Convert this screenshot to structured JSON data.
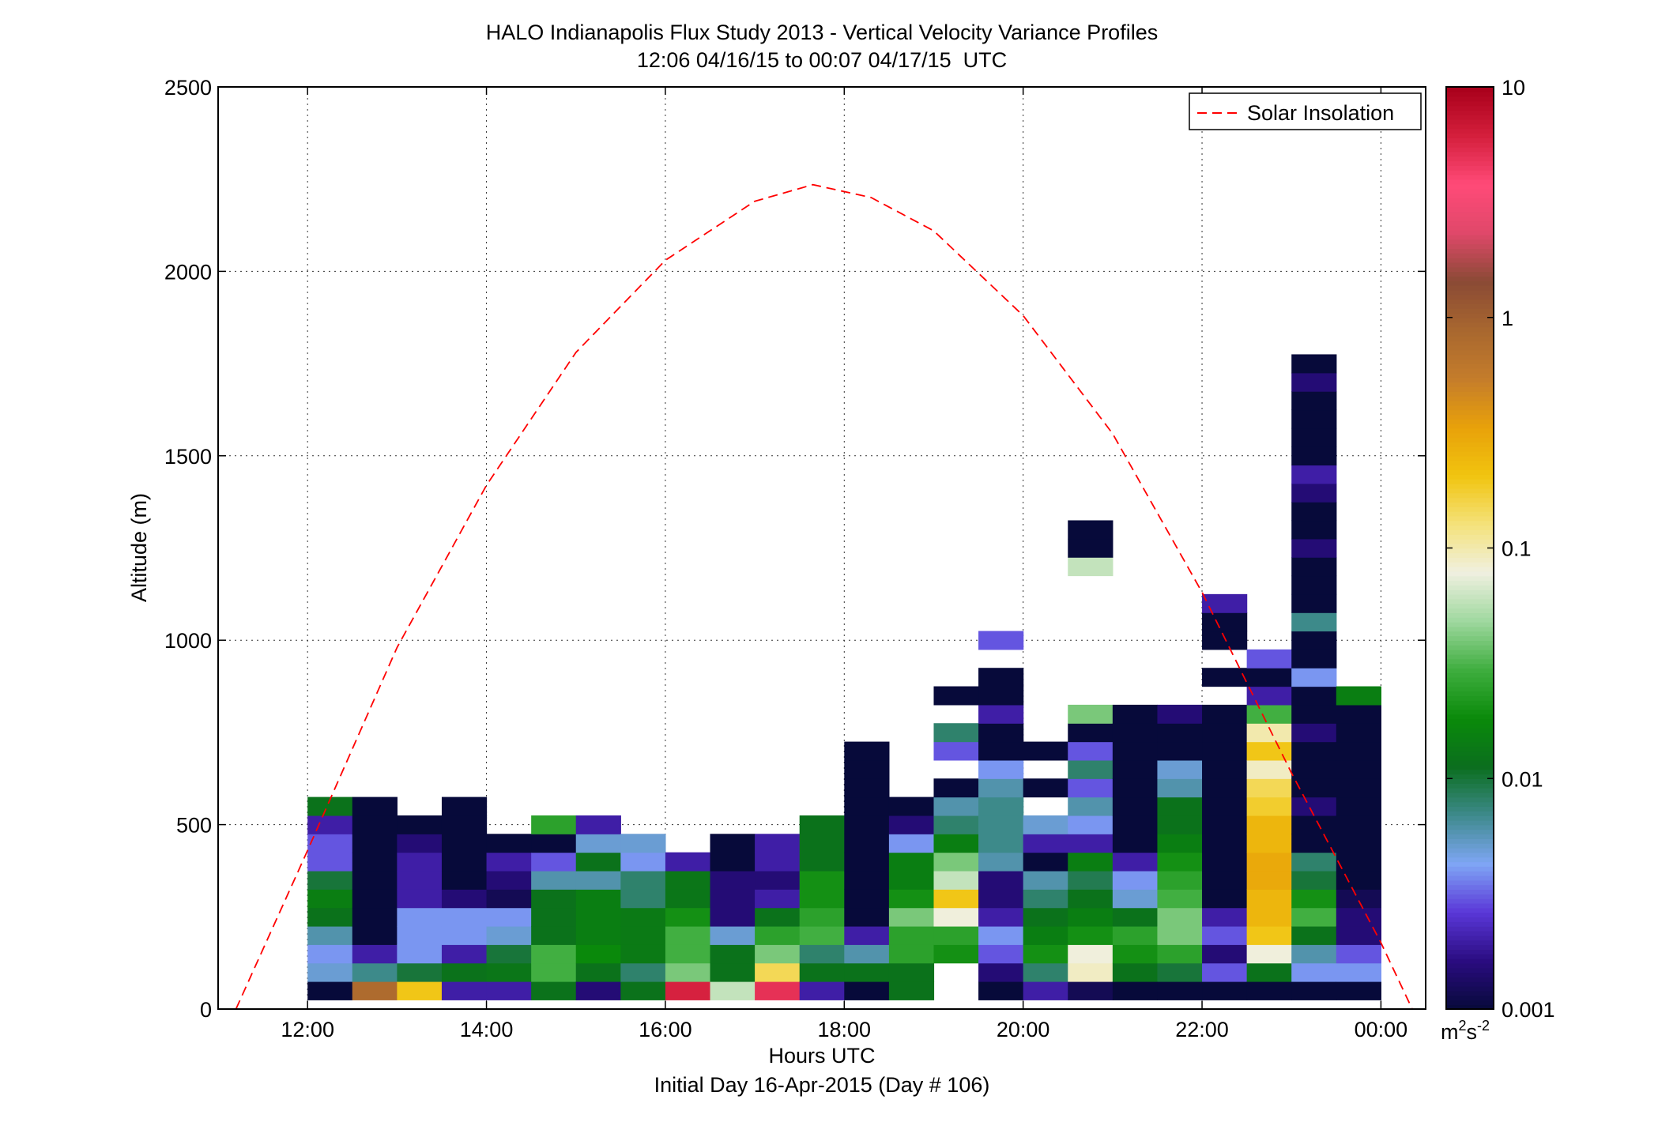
{
  "chart_data": {
    "type": "heatmap",
    "title": "HALO Indianapolis Flux Study 2013 - Vertical Velocity Variance Profiles",
    "subtitle": "12:06 04/16/15 to 00:07 04/17/15  UTC",
    "xlabel": "Hours UTC",
    "xlabel2": "Initial Day 16-Apr-2015 (Day # 106)",
    "ylabel": "Altitude (m)",
    "xlim_hours": [
      11.0,
      24.5
    ],
    "ylim": [
      0,
      2500
    ],
    "x_ticks": [
      12,
      14,
      16,
      18,
      20,
      22,
      24
    ],
    "x_tick_labels": [
      "12:00",
      "14:00",
      "16:00",
      "18:00",
      "20:00",
      "22:00",
      "00:00"
    ],
    "y_ticks": [
      0,
      500,
      1000,
      1500,
      2000,
      2500
    ],
    "y_tick_labels": [
      "0",
      "500",
      "1000",
      "1500",
      "2000",
      "2500"
    ],
    "grid": true,
    "legend": {
      "position": "top-right",
      "entries": [
        "Solar Insolation"
      ]
    },
    "colorbar": {
      "scale": "log",
      "range": [
        0.001,
        10
      ],
      "ticks": [
        0.001,
        0.01,
        0.1,
        1,
        10
      ],
      "tick_labels": [
        "0.001",
        "0.01",
        "0.1",
        "1",
        "10"
      ],
      "units": "m",
      "units_sup": "2",
      "units_s": "s",
      "units_sup2": "-2",
      "colors": [
        "#070a3a",
        "#2a0c80",
        "#5a37d8",
        "#7fa6f5",
        "#3e8a8c",
        "#0b6e1e",
        "#0a8a0a",
        "#3fae3f",
        "#9fd89f",
        "#f0f0e0",
        "#f4e27a",
        "#f1c40f",
        "#e8a10a",
        "#c47c2b",
        "#a8672f",
        "#8a4a35",
        "#e0486a",
        "#ff4a78",
        "#d41f3c",
        "#a8001a"
      ]
    },
    "bin_width_hours": 0.5,
    "bin_height_m": 50,
    "columns": [
      {
        "t": 12.25,
        "base": 50,
        "cells": [
          0.001,
          0.005,
          0.004,
          0.006,
          0.012,
          0.015,
          0.01,
          0.003,
          0.003,
          0.002,
          0.012
        ]
      },
      {
        "t": 12.75,
        "base": 50,
        "cells": [
          0.8,
          0.007,
          0.002,
          0.001,
          0.001,
          0.001,
          0.001,
          0.001,
          0.001,
          0.001,
          0.001
        ]
      },
      {
        "t": 13.25,
        "base": 50,
        "cells": [
          0.2,
          0.01,
          0.004,
          0.004,
          0.004,
          0.002,
          0.002,
          0.002,
          0.0015,
          0.001
        ]
      },
      {
        "t": 13.75,
        "base": 50,
        "cells": [
          0.002,
          0.012,
          0.002,
          0.004,
          0.004,
          0.0015,
          0.001,
          0.001,
          0.001,
          0.001,
          0.001
        ]
      },
      {
        "t": 14.25,
        "base": 50,
        "cells": [
          0.002,
          0.013,
          0.01,
          0.005,
          0.004,
          0.0012,
          0.0015,
          0.002,
          0.001
        ]
      },
      {
        "t": 14.75,
        "base": 50,
        "cells": [
          0.012,
          0.03,
          0.03,
          0.012,
          0.012,
          0.012,
          0.006,
          0.003,
          0.001,
          0.025
        ]
      },
      {
        "t": 15.25,
        "base": 50,
        "cells": [
          0.0015,
          0.012,
          0.018,
          0.015,
          0.015,
          0.015,
          0.006,
          0.012,
          0.005,
          0.002
        ]
      },
      {
        "t": 15.75,
        "base": 50,
        "cells": [
          0.012,
          0.008,
          0.014,
          0.014,
          0.014,
          0.008,
          0.008,
          0.004,
          0.005
        ]
      },
      {
        "t": 16.25,
        "base": 50,
        "cells": [
          6.0,
          0.04,
          0.03,
          0.03,
          0.02,
          0.013,
          0.013,
          0.002
        ]
      },
      {
        "t": 16.75,
        "base": 50,
        "cells": [
          0.06,
          0.012,
          0.012,
          0.005,
          0.0015,
          0.0015,
          0.0015,
          0.001,
          0.001
        ]
      },
      {
        "t": 17.25,
        "base": 50,
        "cells": [
          5.0,
          0.15,
          0.04,
          0.025,
          0.012,
          0.002,
          0.0015,
          0.002,
          0.002
        ]
      },
      {
        "t": 17.75,
        "base": 50,
        "cells": [
          0.002,
          0.012,
          0.008,
          0.03,
          0.025,
          0.02,
          0.02,
          0.012,
          0.012,
          0.012
        ]
      },
      {
        "t": 18.25,
        "base": 50,
        "cells": [
          0.001,
          0.012,
          0.006,
          0.002,
          0.001,
          0.001,
          0.001,
          0.001,
          0.001,
          0.001,
          0.001,
          0.001,
          0.001,
          0.001
        ]
      },
      {
        "t": 18.75,
        "base": 50,
        "cells": [
          0.012,
          0.012,
          0.025,
          0.025,
          0.04,
          0.02,
          0.015,
          0.015,
          0.004,
          0.0015,
          0.001
        ]
      },
      {
        "t": 19.25,
        "base": 150,
        "cells": [
          0.02,
          0.025,
          0.08,
          0.2,
          0.06,
          0.04,
          0.015,
          0.008,
          0.006,
          0.001,
          null,
          0.003,
          0.008,
          null,
          0.001
        ]
      },
      {
        "t": 19.75,
        "base": 50,
        "cells": [
          0.001,
          0.0015,
          0.003,
          0.004,
          0.002,
          0.0015,
          0.0015,
          0.006,
          0.007,
          0.007,
          0.007,
          0.006,
          0.004,
          0.001,
          0.001,
          0.002,
          0.001,
          0.001,
          null,
          0.003
        ]
      },
      {
        "t": 20.25,
        "base": 50,
        "cells": [
          0.002,
          0.008,
          0.02,
          0.015,
          0.012,
          0.008,
          0.006,
          0.001,
          0.002,
          0.005,
          null,
          0.001,
          null,
          0.001
        ]
      },
      {
        "t": 20.75,
        "base": 50,
        "cells": [
          0.0012,
          0.09,
          0.08,
          0.02,
          0.015,
          0.012,
          0.009,
          0.015,
          0.002,
          0.004,
          0.006,
          0.003,
          0.008,
          0.003,
          0.001,
          0.04,
          null,
          null,
          null,
          null,
          null,
          null,
          null,
          0.06,
          0.001,
          0.001
        ]
      },
      {
        "t": 21.25,
        "base": 50,
        "cells": [
          0.001,
          0.012,
          0.02,
          0.025,
          0.012,
          0.005,
          0.004,
          0.002,
          0.001,
          0.001,
          0.001,
          0.001,
          0.001,
          0.001,
          0.001,
          0.001
        ]
      },
      {
        "t": 21.75,
        "base": 50,
        "cells": [
          0.001,
          0.01,
          0.025,
          0.04,
          0.04,
          0.03,
          0.025,
          0.02,
          0.015,
          0.012,
          0.012,
          0.006,
          0.005,
          0.001,
          0.001,
          0.0015
        ]
      },
      {
        "t": 22.25,
        "base": 50,
        "cells": [
          0.001,
          0.003,
          0.0015,
          0.003,
          0.002,
          0.001,
          0.001,
          0.001,
          0.001,
          0.001,
          0.001,
          0.001,
          0.001,
          0.001,
          0.001,
          0.001,
          null,
          0.001,
          null,
          0.001,
          0.001,
          0.002
        ]
      },
      {
        "t": 22.75,
        "base": 50,
        "cells": [
          0.001,
          0.012,
          0.08,
          0.2,
          0.25,
          0.25,
          0.3,
          0.3,
          0.25,
          0.25,
          0.18,
          0.15,
          0.09,
          0.2,
          0.1,
          0.03,
          0.002,
          0.001,
          0.003
        ]
      },
      {
        "t": 23.25,
        "base": 50,
        "cells": [
          0.001,
          0.004,
          0.006,
          0.012,
          0.03,
          0.02,
          0.01,
          0.008,
          0.001,
          0.001,
          0.0015,
          0.001,
          0.001,
          0.001,
          0.0015,
          0.001,
          0.001,
          0.004,
          0.001,
          0.001,
          0.007,
          0.001,
          0.001,
          0.001,
          0.0015,
          0.001,
          0.001,
          0.0015,
          0.002,
          0.001,
          0.001,
          0.001,
          0.001,
          0.0015,
          0.001
        ]
      },
      {
        "t": 23.75,
        "base": 50,
        "cells": [
          0.001,
          0.004,
          0.003,
          0.0015,
          0.0015,
          0.0012,
          0.001,
          0.001,
          0.001,
          0.001,
          0.001,
          0.001,
          0.001,
          0.001,
          0.001,
          0.001,
          0.015
        ]
      }
    ],
    "solar_curve": {
      "name": "Solar Insolation",
      "color": "#ff0000",
      "points": [
        [
          11.2,
          0
        ],
        [
          12.0,
          430
        ],
        [
          13.0,
          980
        ],
        [
          14.0,
          1420
        ],
        [
          15.0,
          1780
        ],
        [
          16.0,
          2030
        ],
        [
          17.0,
          2190
        ],
        [
          17.65,
          2235
        ],
        [
          18.3,
          2200
        ],
        [
          19.0,
          2110
        ],
        [
          20.0,
          1880
        ],
        [
          21.0,
          1560
        ],
        [
          22.0,
          1130
        ],
        [
          23.0,
          640
        ],
        [
          24.0,
          180
        ],
        [
          24.35,
          0
        ]
      ]
    }
  }
}
